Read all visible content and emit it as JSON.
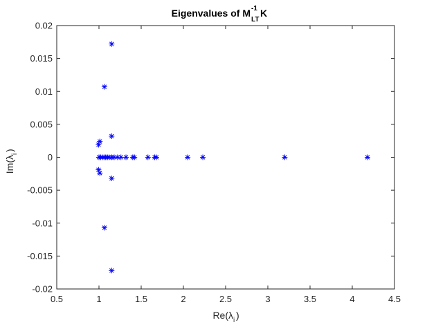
{
  "chart_data": {
    "type": "scatter",
    "title": {
      "prefix": "Eigenvalues of M",
      "superscript": "-1",
      "subscript": "LT",
      "suffix": " K"
    },
    "xlabel": {
      "main": "Re(λ",
      "sub": "i",
      "close": ")"
    },
    "ylabel": {
      "main": "Im(λ",
      "sub": "i",
      "close": ")"
    },
    "xlim": [
      0.5,
      4.5
    ],
    "ylim": [
      -0.02,
      0.02
    ],
    "xticks": [
      "0.5",
      "1",
      "1.5",
      "2",
      "2.5",
      "3",
      "3.5",
      "4",
      "4.5"
    ],
    "yticks": [
      "0.02",
      "0.015",
      "0.01",
      "0.005",
      "0",
      "-0.005",
      "-0.01",
      "-0.015",
      "-0.02"
    ],
    "xtick_values": [
      0.5,
      1,
      1.5,
      2,
      2.5,
      3,
      3.5,
      4,
      4.5
    ],
    "ytick_values": [
      0.02,
      0.015,
      0.01,
      0.005,
      0,
      -0.005,
      -0.01,
      -0.015,
      -0.02
    ],
    "grid": false,
    "marker": "asterisk",
    "color": "#0000ff",
    "points": [
      {
        "x": 1.15,
        "y": 0.0172
      },
      {
        "x": 1.15,
        "y": -0.0172
      },
      {
        "x": 1.065,
        "y": 0.0107
      },
      {
        "x": 1.065,
        "y": -0.0107
      },
      {
        "x": 1.15,
        "y": 0.0032
      },
      {
        "x": 1.15,
        "y": -0.0032
      },
      {
        "x": 1.01,
        "y": 0.0024
      },
      {
        "x": 1.01,
        "y": -0.0024
      },
      {
        "x": 0.995,
        "y": 0.0019
      },
      {
        "x": 0.995,
        "y": -0.0019
      },
      {
        "x": 1.0,
        "y": 0.0
      },
      {
        "x": 1.02,
        "y": 0.0
      },
      {
        "x": 1.04,
        "y": 0.0
      },
      {
        "x": 1.06,
        "y": 0.0
      },
      {
        "x": 1.08,
        "y": 0.0
      },
      {
        "x": 1.1,
        "y": 0.0
      },
      {
        "x": 1.12,
        "y": 0.0
      },
      {
        "x": 1.15,
        "y": 0.0
      },
      {
        "x": 1.18,
        "y": 0.0
      },
      {
        "x": 1.22,
        "y": 0.0
      },
      {
        "x": 1.26,
        "y": 0.0
      },
      {
        "x": 1.32,
        "y": 0.0
      },
      {
        "x": 1.4,
        "y": 0.0
      },
      {
        "x": 1.42,
        "y": 0.0
      },
      {
        "x": 1.58,
        "y": 0.0
      },
      {
        "x": 1.66,
        "y": 0.0
      },
      {
        "x": 1.68,
        "y": 0.0
      },
      {
        "x": 2.05,
        "y": 0.0
      },
      {
        "x": 2.23,
        "y": 0.0
      },
      {
        "x": 3.2,
        "y": 0.0
      },
      {
        "x": 4.18,
        "y": 0.0
      }
    ]
  }
}
